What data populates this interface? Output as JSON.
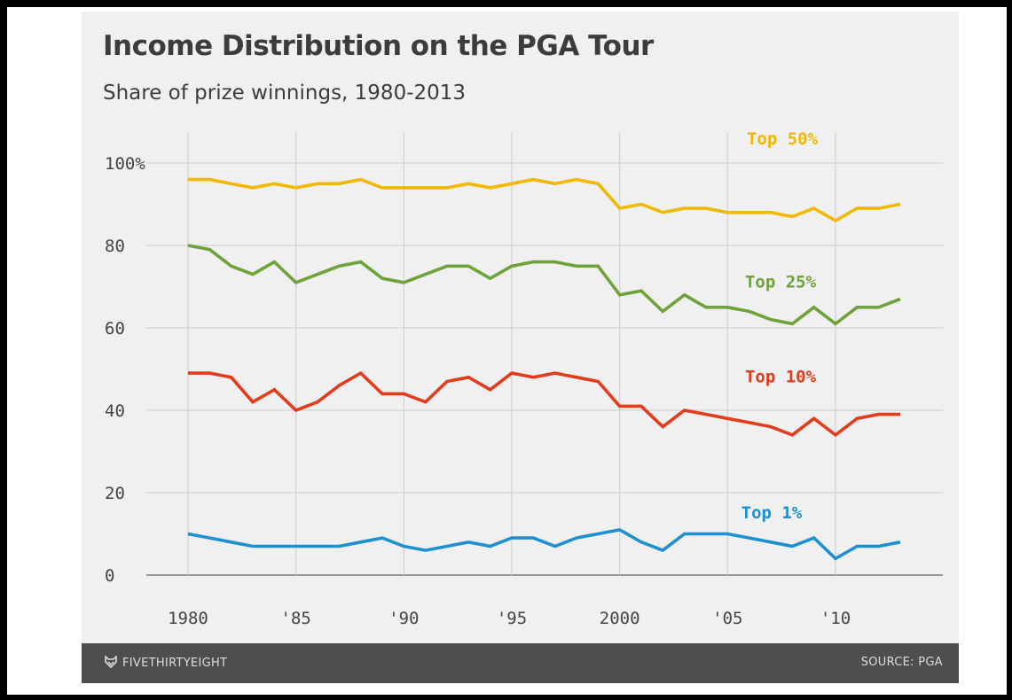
{
  "header": {
    "title": "Income Distribution on the PGA Tour",
    "subtitle": "Share of prize winnings, 1980-2013"
  },
  "footer": {
    "brand": "FIVETHIRTYEIGHT",
    "brand_icon": "fox-icon",
    "source": "SOURCE: PGA"
  },
  "chart_data": {
    "type": "line",
    "title": "Income Distribution on the PGA Tour",
    "subtitle": "Share of prize winnings, 1980-2013",
    "xlabel": "",
    "ylabel": "",
    "x": [
      1980,
      1981,
      1982,
      1983,
      1984,
      1985,
      1986,
      1987,
      1988,
      1989,
      1990,
      1991,
      1992,
      1993,
      1994,
      1995,
      1996,
      1997,
      1998,
      1999,
      2000,
      2001,
      2002,
      2003,
      2004,
      2005,
      2006,
      2007,
      2008,
      2009,
      2010,
      2011,
      2012,
      2013
    ],
    "xlim": [
      1980,
      2013
    ],
    "ylim": [
      0,
      100
    ],
    "y_ticks": [
      0,
      20,
      40,
      60,
      80,
      100
    ],
    "y_tick_labels": [
      "0",
      "20",
      "40",
      "60",
      "80",
      "100%"
    ],
    "x_ticks": [
      1980,
      1985,
      1990,
      1995,
      2000,
      2005,
      2010
    ],
    "x_tick_labels": [
      "1980",
      "'85",
      "'90",
      "'95",
      "2000",
      "'05",
      "'10"
    ],
    "grid": true,
    "series": [
      {
        "name": "Top 50%",
        "color": "#f0b800",
        "values": [
          96,
          96,
          95,
          94,
          95,
          94,
          95,
          95,
          96,
          94,
          94,
          94,
          94,
          95,
          94,
          95,
          96,
          95,
          96,
          95,
          89,
          90,
          88,
          89,
          89,
          88,
          88,
          88,
          87,
          89,
          86,
          89,
          89,
          90
        ]
      },
      {
        "name": "Top 25%",
        "color": "#6ea23a",
        "values": [
          80,
          79,
          75,
          73,
          76,
          71,
          73,
          75,
          76,
          72,
          71,
          73,
          75,
          75,
          72,
          75,
          76,
          76,
          75,
          75,
          68,
          69,
          64,
          68,
          65,
          65,
          64,
          62,
          61,
          65,
          61,
          65,
          65,
          67
        ]
      },
      {
        "name": "Top 10%",
        "color": "#e23c1c",
        "values": [
          49,
          49,
          48,
          42,
          45,
          40,
          42,
          46,
          49,
          44,
          44,
          42,
          47,
          48,
          45,
          49,
          48,
          49,
          48,
          47,
          41,
          41,
          36,
          40,
          39,
          38,
          37,
          36,
          34,
          38,
          34,
          38,
          39,
          39
        ]
      },
      {
        "name": "Top 1%",
        "color": "#1e90d0",
        "values": [
          10,
          9,
          8,
          7,
          7,
          7,
          7,
          7,
          8,
          9,
          7,
          6,
          7,
          8,
          7,
          9,
          9,
          7,
          9,
          10,
          11,
          8,
          6,
          10,
          10,
          10,
          9,
          8,
          7,
          9,
          4,
          7,
          7,
          8
        ]
      }
    ]
  }
}
